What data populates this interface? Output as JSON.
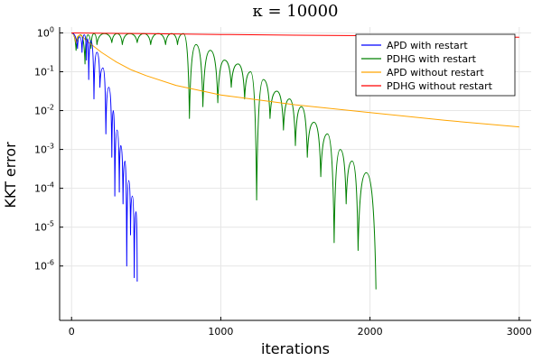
{
  "chart_data": {
    "type": "line",
    "title": "κ = 10000",
    "xlabel": "iterations",
    "ylabel": "KKT error",
    "xlim": [
      -80,
      3080
    ],
    "ylim_log10": [
      -7.4,
      0.15
    ],
    "y_scale": "log",
    "grid": true,
    "legend_position": "top-right",
    "x_ticks": [
      "0",
      "1000",
      "2000",
      "3000"
    ],
    "x_tick_values": [
      0,
      1000,
      2000,
      3000
    ],
    "y_ticks_log10": [
      0,
      -1,
      -2,
      -3,
      -4,
      -5,
      -6
    ],
    "y_tick_labels": [
      {
        "base": "10",
        "exp": "0"
      },
      {
        "base": "10",
        "exp": "-1"
      },
      {
        "base": "10",
        "exp": "-2"
      },
      {
        "base": "10",
        "exp": "-3"
      },
      {
        "base": "10",
        "exp": "-4"
      },
      {
        "base": "10",
        "exp": "-5"
      },
      {
        "base": "10",
        "exp": "-6"
      }
    ],
    "series": [
      {
        "name": "APD with restart",
        "color": "#0000ff",
        "kind": "oscillating",
        "start": 0,
        "end_x": 440,
        "dips": [
          [
            40,
            -0.4
          ],
          [
            70,
            -0.5
          ],
          [
            100,
            -0.7
          ],
          [
            115,
            -1.2
          ],
          [
            150,
            -1.7
          ],
          [
            190,
            -1.4
          ],
          [
            230,
            -2.6
          ],
          [
            270,
            -3.2
          ],
          [
            290,
            -4.2
          ],
          [
            320,
            -4.1
          ],
          [
            345,
            -4.4
          ],
          [
            370,
            -6.0
          ],
          [
            395,
            -5.2
          ],
          [
            420,
            -6.3
          ],
          [
            440,
            -6.4
          ]
        ],
        "peaks": [
          [
            0,
            0
          ],
          [
            55,
            -0.1
          ],
          [
            85,
            -0.05
          ],
          [
            108,
            -0.15
          ],
          [
            130,
            -0.2
          ],
          [
            170,
            -0.5
          ],
          [
            210,
            -0.9
          ],
          [
            250,
            -1.4
          ],
          [
            280,
            -2.0
          ],
          [
            305,
            -2.5
          ],
          [
            330,
            -2.9
          ],
          [
            358,
            -3.3
          ],
          [
            383,
            -3.8
          ],
          [
            408,
            -4.2
          ],
          [
            432,
            -4.6
          ]
        ]
      },
      {
        "name": "PDHG with restart",
        "color": "#008000",
        "kind": "oscillating",
        "end_x": 2040,
        "dips": [
          [
            30,
            -0.45
          ],
          [
            90,
            -0.8
          ],
          [
            130,
            -0.4
          ],
          [
            170,
            -0.3
          ],
          [
            270,
            -0.25
          ],
          [
            340,
            -0.3
          ],
          [
            440,
            -0.25
          ],
          [
            530,
            -0.3
          ],
          [
            630,
            -0.3
          ],
          [
            710,
            -0.3
          ],
          [
            790,
            -2.2
          ],
          [
            880,
            -1.9
          ],
          [
            980,
            -1.8
          ],
          [
            1070,
            -1.4
          ],
          [
            1160,
            -1.7
          ],
          [
            1240,
            -4.3
          ],
          [
            1330,
            -2.2
          ],
          [
            1420,
            -2.5
          ],
          [
            1500,
            -2.9
          ],
          [
            1580,
            -3.2
          ],
          [
            1670,
            -3.7
          ],
          [
            1760,
            -5.4
          ],
          [
            1840,
            -4.4
          ],
          [
            1920,
            -5.6
          ],
          [
            2040,
            -6.6
          ]
        ],
        "peaks": [
          [
            0,
            0
          ],
          [
            60,
            -0.05
          ],
          [
            110,
            -0.05
          ],
          [
            150,
            -0.02
          ],
          [
            220,
            -0.02
          ],
          [
            305,
            -0.02
          ],
          [
            390,
            -0.02
          ],
          [
            485,
            -0.02
          ],
          [
            580,
            -0.02
          ],
          [
            670,
            -0.02
          ],
          [
            750,
            -0.02
          ],
          [
            835,
            -0.3
          ],
          [
            930,
            -0.45
          ],
          [
            1025,
            -0.7
          ],
          [
            1115,
            -0.8
          ],
          [
            1200,
            -1.0
          ],
          [
            1285,
            -1.2
          ],
          [
            1375,
            -1.5
          ],
          [
            1460,
            -1.7
          ],
          [
            1540,
            -1.9
          ],
          [
            1625,
            -2.3
          ],
          [
            1715,
            -2.6
          ],
          [
            1800,
            -3.0
          ],
          [
            1880,
            -3.3
          ],
          [
            1975,
            -3.6
          ]
        ]
      },
      {
        "name": "APD without restart",
        "color": "#ffa500",
        "kind": "smooth",
        "points": [
          [
            0,
            0
          ],
          [
            10,
            -0.02
          ],
          [
            20,
            -0.1
          ],
          [
            30,
            -0.25
          ],
          [
            40,
            -0.1
          ],
          [
            55,
            -0.05
          ],
          [
            75,
            -0.1
          ],
          [
            100,
            -0.2
          ],
          [
            150,
            -0.35
          ],
          [
            200,
            -0.5
          ],
          [
            300,
            -0.75
          ],
          [
            400,
            -0.95
          ],
          [
            500,
            -1.1
          ],
          [
            700,
            -1.35
          ],
          [
            1000,
            -1.6
          ],
          [
            1500,
            -1.85
          ],
          [
            2000,
            -2.05
          ],
          [
            2500,
            -2.25
          ],
          [
            3000,
            -2.42
          ]
        ]
      },
      {
        "name": "PDHG without restart",
        "color": "#ff0000",
        "kind": "smooth",
        "points": [
          [
            0,
            0
          ],
          [
            500,
            -0.02
          ],
          [
            1000,
            -0.04
          ],
          [
            1500,
            -0.06
          ],
          [
            2000,
            -0.07
          ],
          [
            2500,
            -0.09
          ],
          [
            3000,
            -0.11
          ]
        ]
      }
    ]
  }
}
